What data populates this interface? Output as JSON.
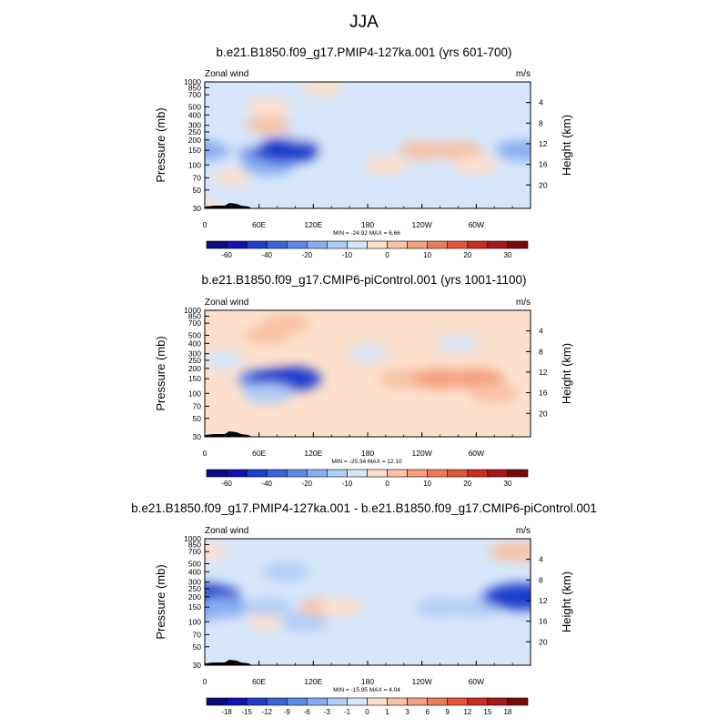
{
  "title": "JJA",
  "chart_data": [
    {
      "type": "contour",
      "title": "b.e21.B1850.f09_g17.PMIP4-127ka.001 (yrs 601-700)",
      "left_label": "Zonal wind",
      "right_label": "m/s",
      "ylabel": "Pressure (mb)",
      "ylabel_right": "Height (km)",
      "xticks": [
        "0",
        "60E",
        "120E",
        "180",
        "120W",
        "60W"
      ],
      "yticks": [
        "30",
        "50",
        "70",
        "100",
        "150",
        "200",
        "250",
        "300",
        "400",
        "500",
        "700",
        "850",
        "1000"
      ],
      "height_ticks": [
        "20",
        "16",
        "12",
        "8",
        "4"
      ],
      "stats": "MIN = -24.92  MAX =   6.66",
      "min": -24.92,
      "max": 6.66,
      "colorbar_labels": [
        "-60",
        "-40",
        "-20",
        "-10",
        "0",
        "10",
        "20",
        "30"
      ],
      "colorbar_colors": [
        "#0a0a82",
        "#1212b4",
        "#1f3ccc",
        "#3a63dd",
        "#5e88ea",
        "#88aef2",
        "#b0cdf6",
        "#d6e6fa",
        "#fde0cc",
        "#f8c2a6",
        "#f4a080",
        "#ee7b5a",
        "#e4553a",
        "#cc2c22",
        "#a81818",
        "#7a0a0a"
      ],
      "cells": [
        {
          "col": 0,
          "row": 0,
          "lon": 0,
          "lev": 30,
          "value": 0
        },
        {
          "col": 2,
          "row": 2,
          "lon": 30,
          "lev": 70,
          "value": 0
        },
        {
          "col": 0,
          "row": 4,
          "lon": 0,
          "lev": 150,
          "value": -8
        },
        {
          "col": 3,
          "row": 4,
          "lon": 70,
          "lev": 150,
          "value": -15
        },
        {
          "col": 3,
          "row": 3,
          "lon": 70,
          "lev": 100,
          "value": -10
        },
        {
          "col": 4,
          "row": 4,
          "lon": 90,
          "lev": 150,
          "value": -20
        },
        {
          "col": 5,
          "row": 6,
          "lon": 110,
          "lev": 250,
          "value": -3
        },
        {
          "col": 9,
          "row": 3,
          "lon": 200,
          "lev": 100,
          "value": 3
        },
        {
          "col": 11,
          "row": 4,
          "lon": 240,
          "lev": 150,
          "value": 5
        },
        {
          "col": 13,
          "row": 4,
          "lon": 280,
          "lev": 150,
          "value": 6
        },
        {
          "col": 14,
          "row": 3,
          "lon": 300,
          "lev": 100,
          "value": 3
        },
        {
          "col": 17,
          "row": 4,
          "lon": 350,
          "lev": 150,
          "value": -8
        },
        {
          "col": 3,
          "row": 7,
          "lon": 70,
          "lev": 300,
          "value": 4
        },
        {
          "col": 3,
          "row": 9,
          "lon": 70,
          "lev": 500,
          "value": 3
        },
        {
          "col": 6,
          "row": 11,
          "lon": 130,
          "lev": 850,
          "value": 1
        },
        {
          "col": 2,
          "row": 5,
          "lon": 40,
          "lev": 200,
          "value": -3
        },
        {
          "col": 7,
          "row": 4,
          "lon": 150,
          "lev": 150,
          "value": -2
        }
      ]
    },
    {
      "type": "contour",
      "title": "b.e21.B1850.f09_g17.CMIP6-piControl.001 (yrs 1001-1100)",
      "left_label": "Zonal wind",
      "right_label": "m/s",
      "ylabel": "Pressure (mb)",
      "ylabel_right": "Height (km)",
      "xticks": [
        "0",
        "60E",
        "120E",
        "180",
        "120W",
        "60W"
      ],
      "yticks": [
        "30",
        "50",
        "70",
        "100",
        "150",
        "200",
        "250",
        "300",
        "400",
        "500",
        "700",
        "850",
        "1000"
      ],
      "height_ticks": [
        "20",
        "16",
        "12",
        "8",
        "4"
      ],
      "stats": "MIN = -25.34  MAX =  12.10",
      "min": -25.34,
      "max": 12.1,
      "colorbar_labels": [
        "-60",
        "-40",
        "-20",
        "-10",
        "0",
        "10",
        "20",
        "30"
      ],
      "colorbar_colors": [
        "#0a0a82",
        "#1212b4",
        "#1f3ccc",
        "#3a63dd",
        "#5e88ea",
        "#88aef2",
        "#b0cdf6",
        "#d6e6fa",
        "#fde0cc",
        "#f8c2a6",
        "#f4a080",
        "#ee7b5a",
        "#e4553a",
        "#cc2c22",
        "#a81818",
        "#7a0a0a"
      ],
      "cells": [
        {
          "col": 0,
          "row": 0,
          "lon": 0,
          "lev": 30,
          "value": 2
        },
        {
          "col": 3,
          "row": 4,
          "lon": 70,
          "lev": 150,
          "value": -14
        },
        {
          "col": 4,
          "row": 4,
          "lon": 90,
          "lev": 150,
          "value": -21
        },
        {
          "col": 3,
          "row": 3,
          "lon": 70,
          "lev": 100,
          "value": -8
        },
        {
          "col": 10,
          "row": 4,
          "lon": 220,
          "lev": 150,
          "value": 8
        },
        {
          "col": 12,
          "row": 4,
          "lon": 260,
          "lev": 150,
          "value": 10
        },
        {
          "col": 14,
          "row": 4,
          "lon": 300,
          "lev": 150,
          "value": 11
        },
        {
          "col": 15,
          "row": 3,
          "lon": 320,
          "lev": 100,
          "value": 6
        },
        {
          "col": 3,
          "row": 7,
          "lon": 70,
          "lev": 300,
          "value": 4
        },
        {
          "col": 3,
          "row": 9,
          "lon": 70,
          "lev": 500,
          "value": 5
        },
        {
          "col": 4,
          "row": 10,
          "lon": 90,
          "lev": 700,
          "value": 6
        },
        {
          "col": 1,
          "row": 6,
          "lon": 20,
          "lev": 250,
          "value": -3
        },
        {
          "col": 8,
          "row": 7,
          "lon": 180,
          "lev": 300,
          "value": -1
        },
        {
          "col": 13,
          "row": 8,
          "lon": 280,
          "lev": 400,
          "value": -1
        }
      ]
    },
    {
      "type": "contour",
      "title": "b.e21.B1850.f09_g17.PMIP4-127ka.001 - b.e21.B1850.f09_g17.CMIP6-piControl.001",
      "left_label": "Zonal wind",
      "right_label": "m/s",
      "ylabel": "Pressure (mb)",
      "ylabel_right": "Height (km)",
      "xticks": [
        "0",
        "60E",
        "120E",
        "180",
        "120W",
        "60W"
      ],
      "yticks": [
        "30",
        "50",
        "70",
        "100",
        "150",
        "200",
        "250",
        "300",
        "400",
        "500",
        "700",
        "850",
        "1000"
      ],
      "height_ticks": [
        "20",
        "16",
        "12",
        "8",
        "4"
      ],
      "stats": "MIN = -15.95  MAX =   4.04",
      "min": -15.95,
      "max": 4.04,
      "colorbar_labels": [
        "-18",
        "-15",
        "-12",
        "-9",
        "-6",
        "-3",
        "-1",
        "0",
        "1",
        "3",
        "6",
        "9",
        "12",
        "15",
        "18"
      ],
      "colorbar_colors": [
        "#0a0a82",
        "#1212b4",
        "#1f3ccc",
        "#3a63dd",
        "#5e88ea",
        "#88aef2",
        "#b0cdf6",
        "#d6e6fa",
        "#fde0cc",
        "#f8c2a6",
        "#f4a080",
        "#ee7b5a",
        "#e4553a",
        "#cc2c22",
        "#a81818",
        "#7a0a0a"
      ],
      "cells": [
        {
          "col": 0,
          "row": 0,
          "lon": 0,
          "lev": 30,
          "value": -0.5
        },
        {
          "col": 0,
          "row": 4,
          "lon": 0,
          "lev": 150,
          "value": -10
        },
        {
          "col": 0,
          "row": 5,
          "lon": 0,
          "lev": 200,
          "value": -14
        },
        {
          "col": 1,
          "row": 4,
          "lon": 20,
          "lev": 150,
          "value": -6
        },
        {
          "col": 3,
          "row": 3,
          "lon": 70,
          "lev": 100,
          "value": 1
        },
        {
          "col": 3,
          "row": 4,
          "lon": 70,
          "lev": 150,
          "value": -3
        },
        {
          "col": 5,
          "row": 3,
          "lon": 110,
          "lev": 100,
          "value": -4
        },
        {
          "col": 6,
          "row": 4,
          "lon": 130,
          "lev": 150,
          "value": 3
        },
        {
          "col": 7,
          "row": 4,
          "lon": 150,
          "lev": 150,
          "value": 2
        },
        {
          "col": 10,
          "row": 5,
          "lon": 220,
          "lev": 200,
          "value": -2
        },
        {
          "col": 12,
          "row": 4,
          "lon": 260,
          "lev": 150,
          "value": -4
        },
        {
          "col": 14,
          "row": 4,
          "lon": 300,
          "lev": 150,
          "value": -5
        },
        {
          "col": 16,
          "row": 5,
          "lon": 340,
          "lev": 200,
          "value": -10
        },
        {
          "col": 17,
          "row": 5,
          "lon": 350,
          "lev": 200,
          "value": -15
        },
        {
          "col": 0,
          "row": 10,
          "lon": 0,
          "lev": 700,
          "value": 2
        },
        {
          "col": 16,
          "row": 10,
          "lon": 340,
          "lev": 700,
          "value": 3
        },
        {
          "col": 17,
          "row": 10,
          "lon": 350,
          "lev": 700,
          "value": 3
        },
        {
          "col": 4,
          "row": 8,
          "lon": 90,
          "lev": 400,
          "value": -3
        },
        {
          "col": 9,
          "row": 9,
          "lon": 200,
          "lev": 500,
          "value": -1
        }
      ]
    }
  ]
}
